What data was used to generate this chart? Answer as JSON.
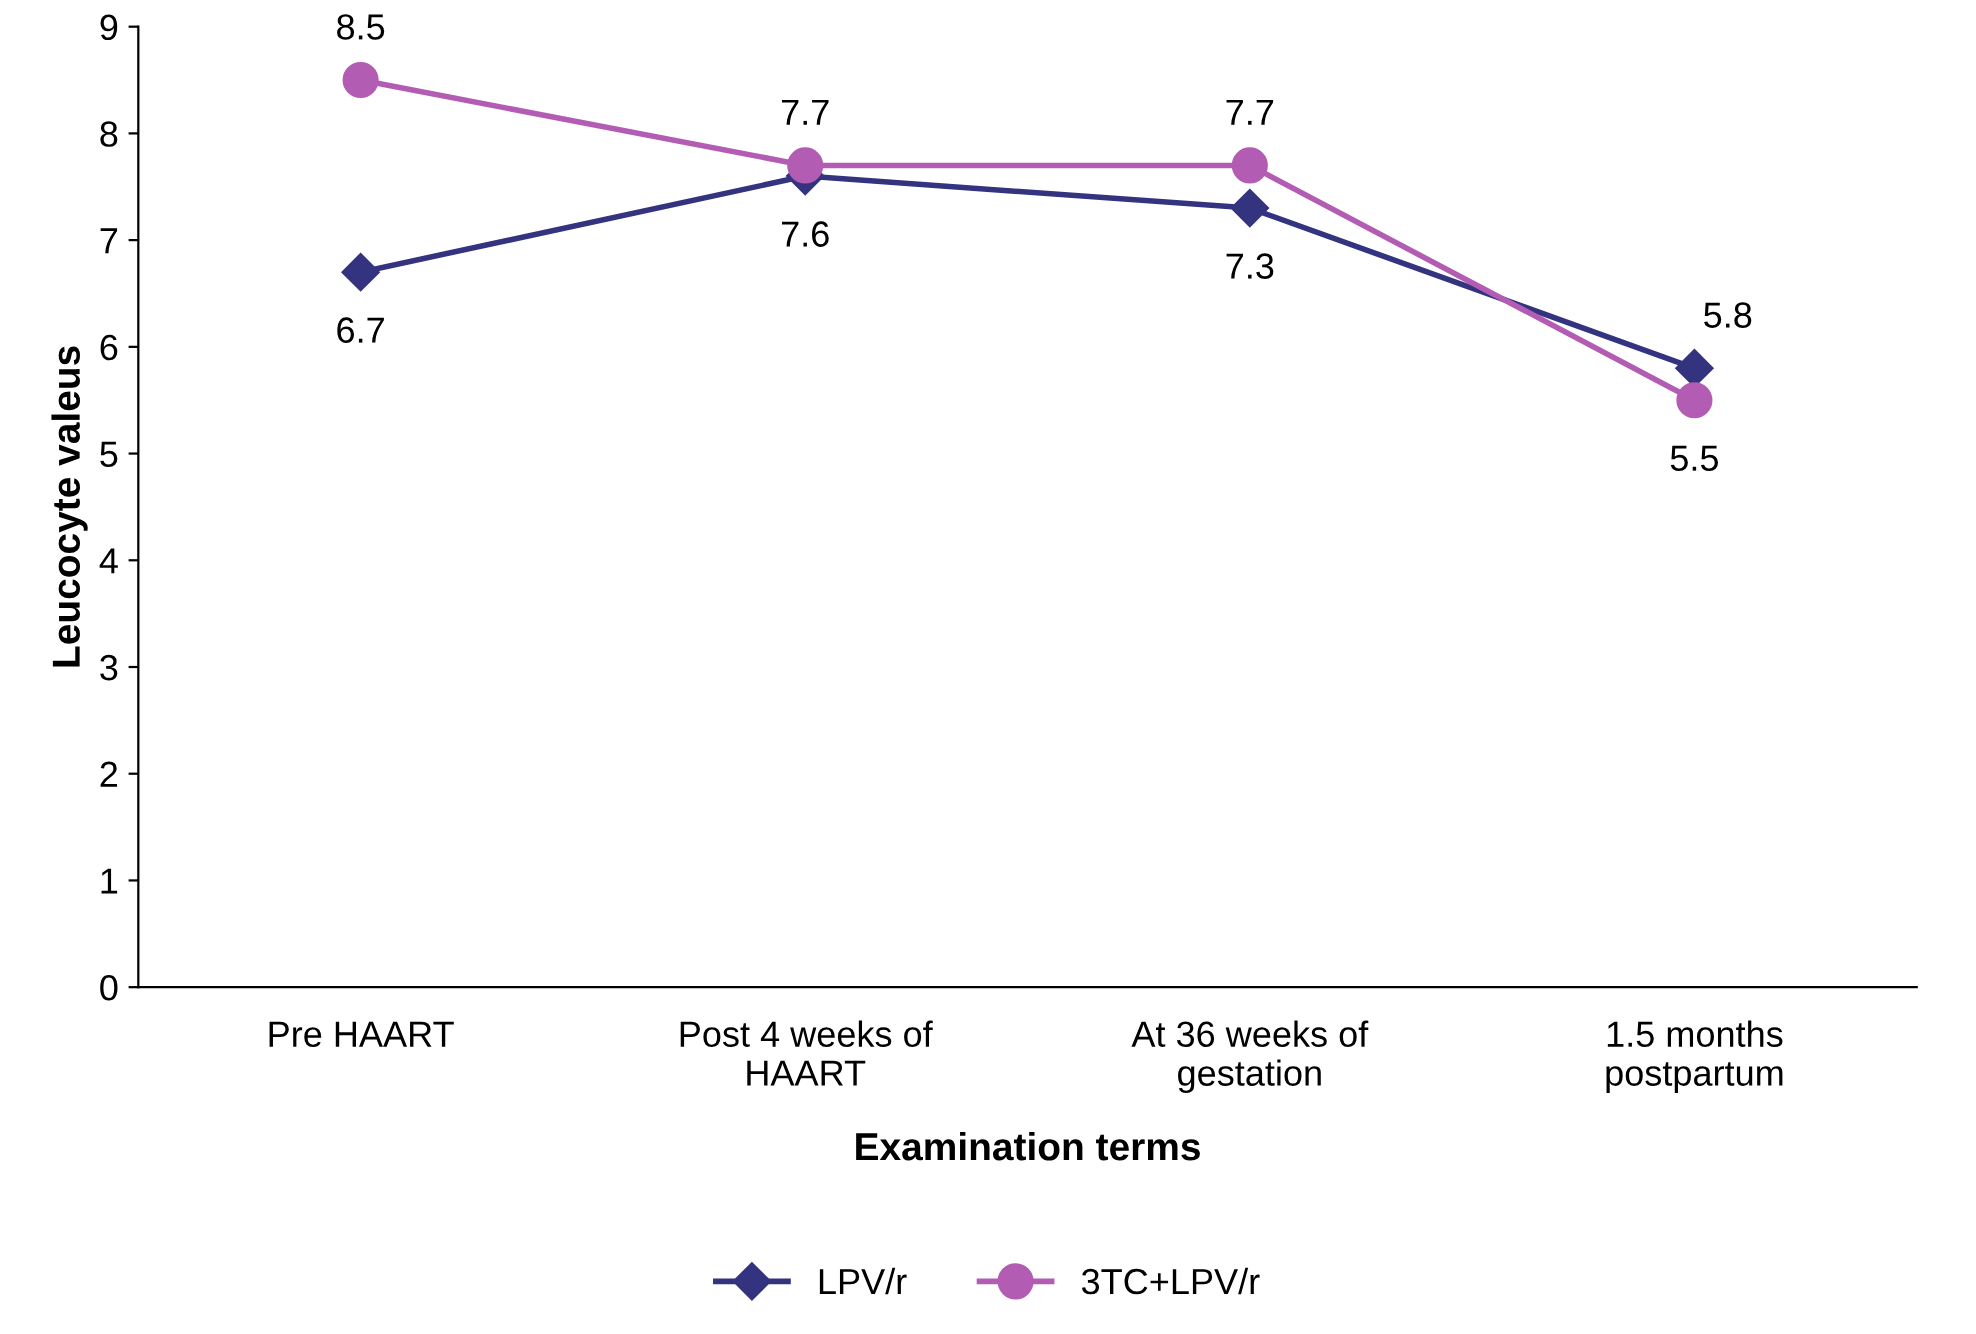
{
  "chart_data": {
    "type": "line",
    "xlabel": "Examination terms",
    "ylabel": "Leucocyte valeus",
    "categories": [
      "Pre HAART",
      "Post 4 weeks of\nHAART",
      "At 36 weeks of\ngestation",
      "1.5 months\npostpartum"
    ],
    "series": [
      {
        "name": "LPV/r",
        "color": "#333380",
        "marker": "diamond",
        "values": [
          6.7,
          7.6,
          7.3,
          5.8
        ]
      },
      {
        "name": "3TC+LPV/r",
        "color": "#b35cb3",
        "marker": "circle",
        "values": [
          8.5,
          7.7,
          7.7,
          5.5
        ]
      }
    ],
    "ylim": [
      0,
      9
    ],
    "yticks": [
      0,
      1,
      2,
      3,
      4,
      5,
      6,
      7,
      8,
      9
    ],
    "grid": false,
    "legend": "bottom",
    "data_labels": true
  }
}
